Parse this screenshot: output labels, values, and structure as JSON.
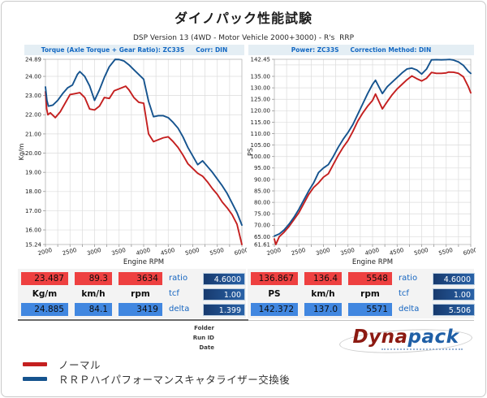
{
  "page": {
    "title": "ダイノパック性能試験",
    "subtitle": "DSP Version 13 (4WD - Motor Vehicle 2000+3000) - R's  RRP"
  },
  "chart_headers": {
    "left": {
      "part1": "Torque (Axle Torque + Gear Ratio): ZC33S",
      "part2": "Corr: DIN"
    },
    "right": {
      "part1": "Power: ZC33S",
      "part2": "Correction Method: DIN"
    }
  },
  "chart_data": [
    {
      "type": "line",
      "title": "Torque (Axle Torque + Gear Ratio): ZC33S  Corr: DIN",
      "xlabel": "Engine RPM",
      "ylabel": "Kg/m",
      "xlim": [
        2000,
        6000
      ],
      "ylim": [
        15.24,
        24.89
      ],
      "x_tick_labels": [
        2000,
        2500,
        3000,
        3500,
        4000,
        4500,
        5000,
        5500,
        6000
      ],
      "x_grid_step": 250,
      "y_tick_values": [
        24.89,
        24,
        23,
        22,
        21,
        20,
        19,
        18,
        17,
        16,
        15.24
      ],
      "y_tick_labels": [
        "24.89",
        "24.00",
        "23.00",
        "22.00",
        "21.00",
        "20.00",
        "19.00",
        "18.00",
        "17.00",
        "16.00",
        "15.24"
      ],
      "y_grid": [
        16,
        17,
        18,
        19,
        20,
        21,
        22,
        23,
        24
      ],
      "grid": true,
      "legend_position": "none",
      "series": [
        {
          "name": "ノーマル",
          "color": "#c41f1f",
          "points": [
            [
              2000,
              23.2
            ],
            [
              2025,
              22.3
            ],
            [
              2050,
              22.0
            ],
            [
              2100,
              22.1
            ],
            [
              2200,
              21.85
            ],
            [
              2300,
              22.15
            ],
            [
              2400,
              22.6
            ],
            [
              2500,
              23.05
            ],
            [
              2600,
              23.1
            ],
            [
              2700,
              23.15
            ],
            [
              2800,
              22.9
            ],
            [
              2900,
              22.3
            ],
            [
              3000,
              22.25
            ],
            [
              3100,
              22.45
            ],
            [
              3200,
              22.9
            ],
            [
              3300,
              22.85
            ],
            [
              3400,
              23.25
            ],
            [
              3500,
              23.35
            ],
            [
              3634,
              23.487
            ],
            [
              3700,
              23.3
            ],
            [
              3800,
              22.9
            ],
            [
              3900,
              22.65
            ],
            [
              4000,
              22.6
            ],
            [
              4100,
              21.0
            ],
            [
              4200,
              20.6
            ],
            [
              4300,
              20.7
            ],
            [
              4400,
              20.8
            ],
            [
              4500,
              20.85
            ],
            [
              4600,
              20.6
            ],
            [
              4700,
              20.3
            ],
            [
              4800,
              19.9
            ],
            [
              4900,
              19.45
            ],
            [
              5000,
              19.2
            ],
            [
              5100,
              18.95
            ],
            [
              5200,
              18.8
            ],
            [
              5300,
              18.5
            ],
            [
              5400,
              18.15
            ],
            [
              5500,
              17.85
            ],
            [
              5600,
              17.45
            ],
            [
              5700,
              17.15
            ],
            [
              5800,
              16.8
            ],
            [
              5900,
              16.3
            ],
            [
              6000,
              15.24
            ]
          ]
        },
        {
          "name": "ＲＲＰハイパフォーマンスキャタライザー交換後",
          "color": "#15538e",
          "points": [
            [
              2000,
              23.45
            ],
            [
              2030,
              22.75
            ],
            [
              2060,
              22.45
            ],
            [
              2150,
              22.5
            ],
            [
              2250,
              22.75
            ],
            [
              2350,
              23.1
            ],
            [
              2450,
              23.4
            ],
            [
              2550,
              23.55
            ],
            [
              2650,
              24.1
            ],
            [
              2700,
              24.25
            ],
            [
              2800,
              24.0
            ],
            [
              2900,
              23.5
            ],
            [
              3000,
              22.75
            ],
            [
              3100,
              23.3
            ],
            [
              3200,
              23.95
            ],
            [
              3300,
              24.5
            ],
            [
              3419,
              24.885
            ],
            [
              3500,
              24.88
            ],
            [
              3600,
              24.8
            ],
            [
              3700,
              24.6
            ],
            [
              3800,
              24.35
            ],
            [
              3900,
              24.1
            ],
            [
              4000,
              23.85
            ],
            [
              4100,
              22.7
            ],
            [
              4200,
              21.9
            ],
            [
              4300,
              21.95
            ],
            [
              4400,
              21.95
            ],
            [
              4500,
              21.85
            ],
            [
              4600,
              21.6
            ],
            [
              4700,
              21.3
            ],
            [
              4800,
              20.85
            ],
            [
              4900,
              20.3
            ],
            [
              5000,
              19.85
            ],
            [
              5100,
              19.4
            ],
            [
              5200,
              19.6
            ],
            [
              5300,
              19.3
            ],
            [
              5400,
              19.0
            ],
            [
              5500,
              18.65
            ],
            [
              5600,
              18.3
            ],
            [
              5700,
              17.9
            ],
            [
              5800,
              17.4
            ],
            [
              5900,
              16.9
            ],
            [
              6000,
              16.25
            ]
          ]
        }
      ]
    },
    {
      "type": "line",
      "title": "Power: ZC33S  Correction Method: DIN",
      "xlabel": "Engine RPM",
      "ylabel": "PS",
      "xlim": [
        2000,
        6000
      ],
      "ylim": [
        61.61,
        142.45
      ],
      "x_tick_labels": [
        2000,
        2500,
        3000,
        3500,
        4000,
        4500,
        5000,
        5500,
        6000
      ],
      "x_grid_step": 250,
      "y_tick_values": [
        142.45,
        135,
        130,
        125,
        120,
        115,
        110,
        105,
        100,
        95,
        90,
        85,
        80,
        75,
        70,
        65,
        61.61
      ],
      "y_tick_labels": [
        "142.45",
        "135.00",
        "130.00",
        "125.00",
        "120.00",
        "115.00",
        "110.00",
        "105.00",
        "100.00",
        "95.00",
        "90.00",
        "85.00",
        "80.00",
        "75.00",
        "70.00",
        "65.00",
        "61.61"
      ],
      "y_grid": [
        65,
        70,
        75,
        80,
        85,
        90,
        95,
        100,
        105,
        110,
        115,
        120,
        125,
        130,
        135,
        140
      ],
      "grid": true,
      "legend_position": "none",
      "series": [
        {
          "name": "ノーマル",
          "color": "#c41f1f",
          "points": [
            [
              2000,
              64.0
            ],
            [
              2030,
              61.61
            ],
            [
              2100,
              65.0
            ],
            [
              2200,
              67.0
            ],
            [
              2300,
              69.5
            ],
            [
              2400,
              72.5
            ],
            [
              2500,
              75.5
            ],
            [
              2600,
              79.5
            ],
            [
              2700,
              83.5
            ],
            [
              2800,
              86.5
            ],
            [
              2900,
              88.5
            ],
            [
              3000,
              91.0
            ],
            [
              3100,
              92.5
            ],
            [
              3200,
              96.5
            ],
            [
              3300,
              100.5
            ],
            [
              3400,
              104.0
            ],
            [
              3500,
              107.0
            ],
            [
              3600,
              111.0
            ],
            [
              3700,
              115.5
            ],
            [
              3800,
              119.0
            ],
            [
              3900,
              122.0
            ],
            [
              4000,
              124.5
            ],
            [
              4060,
              127.3
            ],
            [
              4200,
              120.8
            ],
            [
              4300,
              124.0
            ],
            [
              4400,
              127.0
            ],
            [
              4500,
              129.5
            ],
            [
              4600,
              131.5
            ],
            [
              4700,
              133.5
            ],
            [
              4800,
              135.2
            ],
            [
              4900,
              134.0
            ],
            [
              5000,
              133.0
            ],
            [
              5100,
              134.2
            ],
            [
              5200,
              136.7
            ],
            [
              5300,
              136.3
            ],
            [
              5400,
              136.3
            ],
            [
              5500,
              136.5
            ],
            [
              5548,
              136.867
            ],
            [
              5650,
              136.8
            ],
            [
              5750,
              136.3
            ],
            [
              5850,
              134.8
            ],
            [
              5950,
              130.5
            ],
            [
              6000,
              127.8
            ]
          ]
        },
        {
          "name": "ＲＲＰハイパフォーマンスキャタライザー交換後",
          "color": "#15538e",
          "points": [
            [
              2000,
              65.3
            ],
            [
              2100,
              66.2
            ],
            [
              2200,
              68.0
            ],
            [
              2300,
              70.5
            ],
            [
              2400,
              73.5
            ],
            [
              2500,
              77.0
            ],
            [
              2600,
              81.0
            ],
            [
              2700,
              85.0
            ],
            [
              2800,
              88.5
            ],
            [
              2900,
              93.0
            ],
            [
              3000,
              95.0
            ],
            [
              3100,
              96.5
            ],
            [
              3200,
              100.0
            ],
            [
              3300,
              104.0
            ],
            [
              3400,
              107.5
            ],
            [
              3500,
              110.5
            ],
            [
              3600,
              114.0
            ],
            [
              3700,
              118.5
            ],
            [
              3800,
              123.0
            ],
            [
              3900,
              127.5
            ],
            [
              4000,
              131.5
            ],
            [
              4060,
              133.3
            ],
            [
              4200,
              127.5
            ],
            [
              4300,
              130.5
            ],
            [
              4400,
              132.5
            ],
            [
              4500,
              134.5
            ],
            [
              4600,
              136.5
            ],
            [
              4700,
              138.2
            ],
            [
              4800,
              138.6
            ],
            [
              4900,
              137.8
            ],
            [
              5000,
              136.0
            ],
            [
              5100,
              138.2
            ],
            [
              5200,
              142.2
            ],
            [
              5300,
              142.3
            ],
            [
              5400,
              142.2
            ],
            [
              5500,
              142.3
            ],
            [
              5571,
              142.372
            ],
            [
              5650,
              142.1
            ],
            [
              5750,
              141.3
            ],
            [
              5850,
              139.8
            ],
            [
              5950,
              137.2
            ],
            [
              6000,
              136.3
            ]
          ]
        }
      ]
    }
  ],
  "tables": {
    "left": {
      "red": [
        "23.487",
        "89.3",
        "3634"
      ],
      "units": [
        "Kg/m",
        "km/h",
        "rpm"
      ],
      "blue": [
        "24.885",
        "84.1",
        "3419"
      ],
      "params": [
        {
          "label": "ratio",
          "value": "4.6000"
        },
        {
          "label": "tcf",
          "value": "1.00"
        },
        {
          "label": "delta",
          "value": "1.399"
        }
      ]
    },
    "right": {
      "red": [
        "136.867",
        "136.4",
        "5548"
      ],
      "units": [
        "PS",
        "km/h",
        "rpm"
      ],
      "blue": [
        "142.372",
        "137.0",
        "5571"
      ],
      "params": [
        {
          "label": "ratio",
          "value": "4.6000"
        },
        {
          "label": "tcf",
          "value": "1.00"
        },
        {
          "label": "delta",
          "value": "5.506"
        }
      ]
    }
  },
  "footer": {
    "fields": [
      "Folder",
      "Run ID",
      "Date"
    ],
    "logo": {
      "part1": "Dyna",
      "part2": "pack"
    }
  },
  "legend": [
    {
      "color": "#c41f1f",
      "label": "ノーマル"
    },
    {
      "color": "#15538e",
      "label": "ＲＲＰハイパフォーマンスキャタライザー交換後"
    }
  ],
  "colors": {
    "curve_red": "#c41f1f",
    "curve_blue": "#15538e",
    "table_red": "#ee4040",
    "table_blue": "#4187e0",
    "param_box": "#1e4d8c",
    "header_bg": "#e4eef4",
    "header_text": "#1268c3"
  }
}
